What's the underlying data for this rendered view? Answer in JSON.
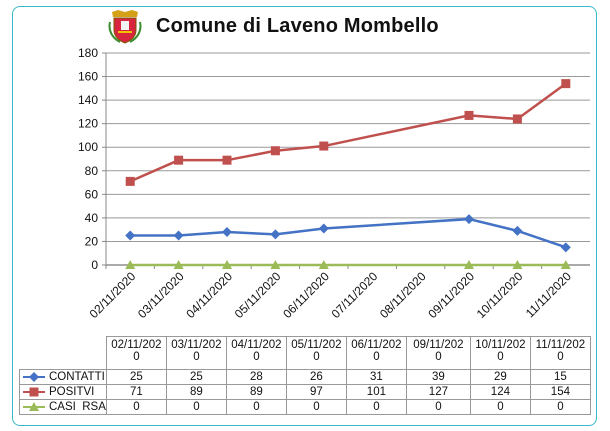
{
  "header": {
    "title": "Comune di Laveno Mombello",
    "crest_icon": "municipal-crest-icon"
  },
  "chart_data": {
    "type": "line",
    "title": "Comune di Laveno Mombello",
    "categories": [
      "02/11/2020",
      "03/11/2020",
      "04/11/2020",
      "05/11/2020",
      "06/11/2020",
      "07/11/2020",
      "08/11/2020",
      "09/11/2020",
      "10/11/2020",
      "11/11/2020"
    ],
    "series": [
      {
        "name": "CONTATTI",
        "color": "#4472c4",
        "marker": "diamond",
        "values": [
          25,
          25,
          28,
          26,
          31,
          null,
          null,
          39,
          29,
          15
        ]
      },
      {
        "name": "POSITVI",
        "color": "#c0504d",
        "marker": "square",
        "values": [
          71,
          89,
          89,
          97,
          101,
          null,
          null,
          127,
          124,
          154
        ]
      },
      {
        "name": "CASI RSA",
        "color": "#9bbb59",
        "marker": "triangle",
        "values": [
          0,
          0,
          0,
          0,
          0,
          null,
          null,
          0,
          0,
          0
        ]
      }
    ],
    "ylim": [
      0,
      180
    ],
    "yticks": [
      0,
      20,
      40,
      60,
      80,
      100,
      120,
      140,
      160,
      180
    ],
    "xlabel": "",
    "ylabel": "",
    "grid": true,
    "table": {
      "columns": [
        [
          "02/11/202",
          "0"
        ],
        [
          "03/11/202",
          "0"
        ],
        [
          "04/11/202",
          "0"
        ],
        [
          "05/11/202",
          "0"
        ],
        [
          "06/11/202",
          "0"
        ],
        [
          "09/11/202",
          "0"
        ],
        [
          "10/11/202",
          "0"
        ],
        [
          "11/11/202",
          "0"
        ]
      ],
      "rows": [
        {
          "label": "CONTATTI",
          "values": [
            25,
            25,
            28,
            26,
            31,
            39,
            29,
            15
          ]
        },
        {
          "label": "POSITVI",
          "values": [
            71,
            89,
            89,
            97,
            101,
            127,
            124,
            154
          ]
        },
        {
          "label": "CASI  RSA",
          "values": [
            0,
            0,
            0,
            0,
            0,
            0,
            0,
            0
          ]
        }
      ]
    }
  }
}
